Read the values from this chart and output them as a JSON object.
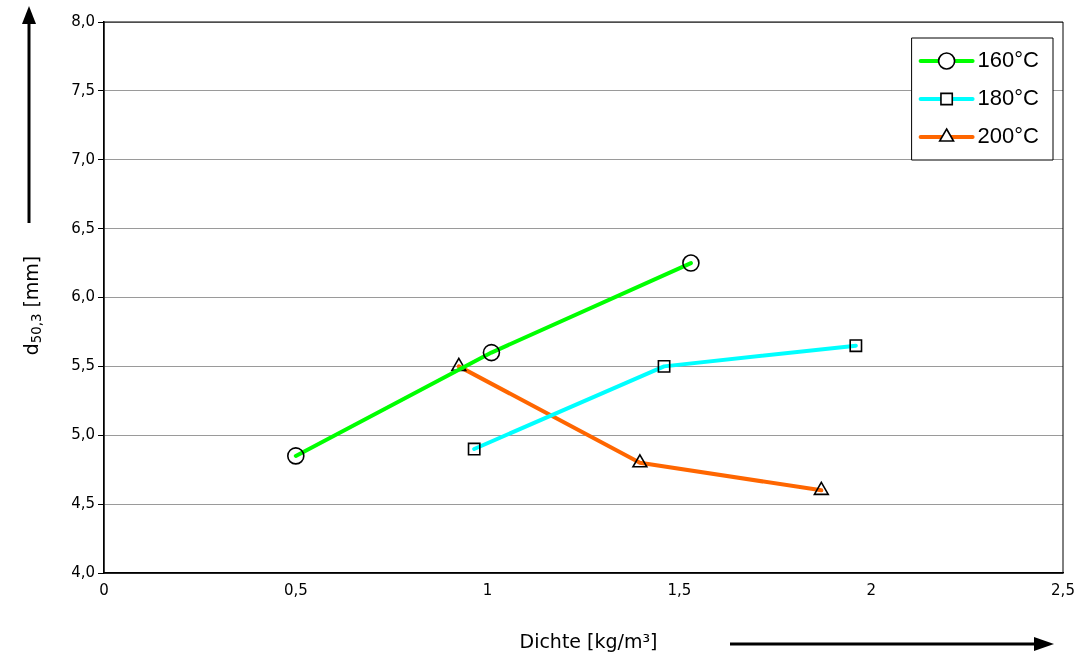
{
  "chart_data": {
    "type": "line",
    "xlabel": "Dichte [kg/m³]",
    "ylabel": "d$_{50,3}$ [mm]",
    "xlim": [
      0,
      2.5
    ],
    "xticks": [
      0,
      {
        "value": 0.5,
        "label": "0,5"
      },
      1,
      {
        "value": 1.5,
        "label": "1,5"
      },
      2,
      {
        "value": 2.5,
        "label": "2,5"
      }
    ],
    "ylim": [
      4,
      8
    ],
    "yticks": [
      {
        "value": 4,
        "label": "4,0"
      },
      {
        "value": 4.5,
        "label": "4,5"
      },
      {
        "value": 5,
        "label": "5,0"
      },
      {
        "value": 5.5,
        "label": "5,5"
      },
      {
        "value": 6,
        "label": "6,0"
      },
      {
        "value": 6.5,
        "label": "6,5"
      },
      {
        "value": 7,
        "label": "7,0"
      },
      {
        "value": 7.5,
        "label": "7,5"
      },
      {
        "value": 8,
        "label": "8,0"
      }
    ],
    "grid": "y",
    "legend": "top right",
    "line_style": "solid",
    "series": [
      {
        "name": "160°C",
        "color": "#00ff00",
        "marker": "circle",
        "x": [
          0.5,
          1.01,
          1.53
        ],
        "values": [
          4.85,
          5.6,
          6.25
        ]
      },
      {
        "name": "180°C",
        "color": "#00ffff",
        "marker": "square",
        "x": [
          0.965,
          1.46,
          1.96
        ],
        "values": [
          4.9,
          5.5,
          5.65
        ]
      },
      {
        "name": "200°C",
        "color": "#ff6600",
        "marker": "triangle",
        "x": [
          0.925,
          1.397,
          1.87
        ],
        "values": [
          5.5,
          4.8,
          4.6
        ]
      }
    ]
  }
}
